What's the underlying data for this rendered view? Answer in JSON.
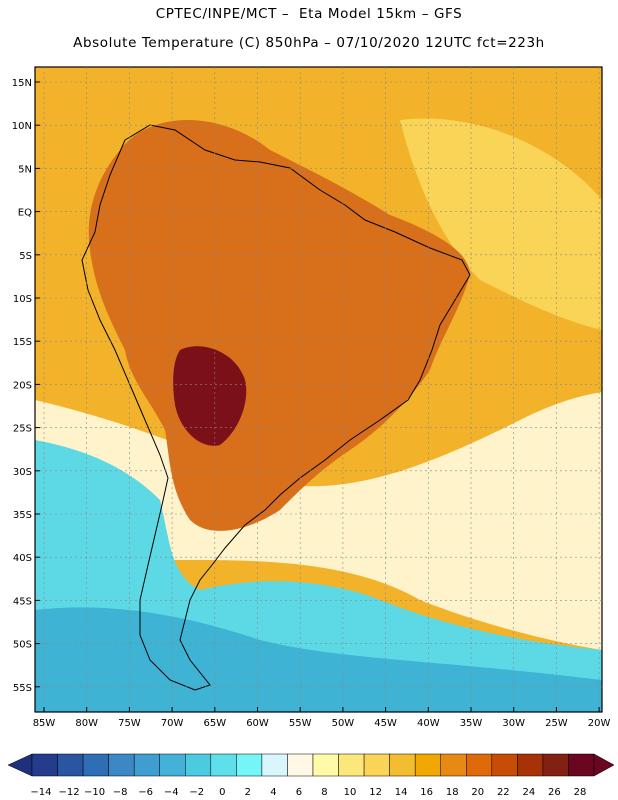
{
  "title_line1": "CPTEC/INPE/MCT –  Eta Model 15km – GFS",
  "title_line2": "Absolute Temperature (C) 850hPa – 07/10/2020 12UTC fct=223h",
  "lat_labels": [
    "15N",
    "10N",
    "5N",
    "EQ",
    "5S",
    "10S",
    "15S",
    "20S",
    "25S",
    "30S",
    "35S",
    "40S",
    "45S",
    "50S",
    "55S"
  ],
  "lon_labels": [
    "85W",
    "80W",
    "75W",
    "70W",
    "65W",
    "60W",
    "55W",
    "50W",
    "45W",
    "40W",
    "35W",
    "30W",
    "25W",
    "20W"
  ],
  "colorbar": {
    "tick_labels": [
      "-14",
      "-12",
      "-10",
      "-8",
      "-6",
      "-4",
      "-2",
      "0",
      "2",
      "4",
      "6",
      "8",
      "10",
      "12",
      "14",
      "16",
      "18",
      "20",
      "22",
      "24",
      "26",
      "28"
    ],
    "colors": [
      "#233d8c",
      "#2a55a0",
      "#2f6db4",
      "#3b88c4",
      "#3f9dd0",
      "#44b2d8",
      "#4ccae0",
      "#5ee0ea",
      "#75f5f5",
      "#d8f6fb",
      "#fff8e6",
      "#fffba8",
      "#fbe77a",
      "#f9d457",
      "#f3bd31",
      "#f0a800",
      "#e68a14",
      "#de6a0a",
      "#c64c08",
      "#a83208",
      "#822013",
      "#6a0620"
    ],
    "under_color": "#1f2f80",
    "over_color": "#6a0620"
  },
  "map": {
    "ocean_color": "#f2b22a",
    "continent_color": "#d86f1b",
    "hot_core_color": "#7b1019",
    "cold_color": "#5dd9e6",
    "deep_cold_color": "#3fb3d4",
    "pale_color": "#fff3cc",
    "coast_color": "#000000"
  }
}
